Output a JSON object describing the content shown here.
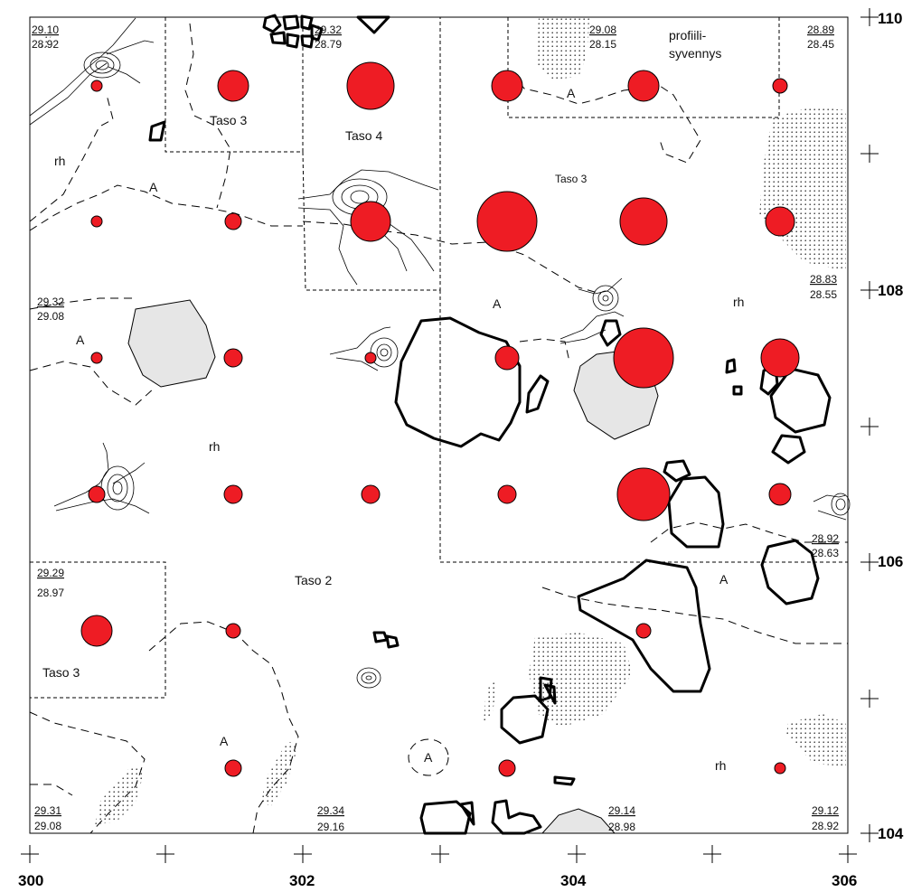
{
  "x_axis_labels": [
    "300",
    "302",
    "304",
    "306"
  ],
  "y_axis_labels": [
    "110",
    "108",
    "106",
    "104"
  ],
  "zone_labels": {
    "taso_3_top_left": "Taso 3",
    "taso_4": "Taso 4",
    "taso_3_top_right": "Taso 3",
    "taso_2": "Taso 2",
    "taso_3_bottom_left": "Taso 3",
    "profiili_line1": "profiili-",
    "profiili_line2": "syvennys"
  },
  "soil_labels": {
    "rh_1": "rh",
    "a_1": "A",
    "a_2": "A",
    "rh_2": "rh",
    "a_3": "A",
    "rh_3": "rh",
    "a_4": "A",
    "a_5": "A",
    "a_6": "A",
    "a_7": "A",
    "rh_4": "rh"
  },
  "elevations": [
    {
      "top": "29.10",
      "bottom": "28.92"
    },
    {
      "top": "29.32",
      "bottom": "28.79"
    },
    {
      "top": "29.08",
      "bottom": "28.15"
    },
    {
      "top": "28.89",
      "bottom": "28.45"
    },
    {
      "top": "29.32",
      "bottom": "29.08"
    },
    {
      "top": "28.83",
      "bottom": "28.55"
    },
    {
      "top": "28.92",
      "bottom": "28.63"
    },
    {
      "top": "29.29",
      "bottom": "28.97"
    },
    {
      "top": "29.31",
      "bottom": "29.08"
    },
    {
      "top": "29.34",
      "bottom": "29.16"
    },
    {
      "top": "29.14",
      "bottom": "28.98"
    },
    {
      "top": "29.12",
      "bottom": "28.92"
    }
  ],
  "colors": {
    "find_fill": "#ee1c24",
    "stone_fill": "#e6e6e6",
    "line": "#000000"
  }
}
